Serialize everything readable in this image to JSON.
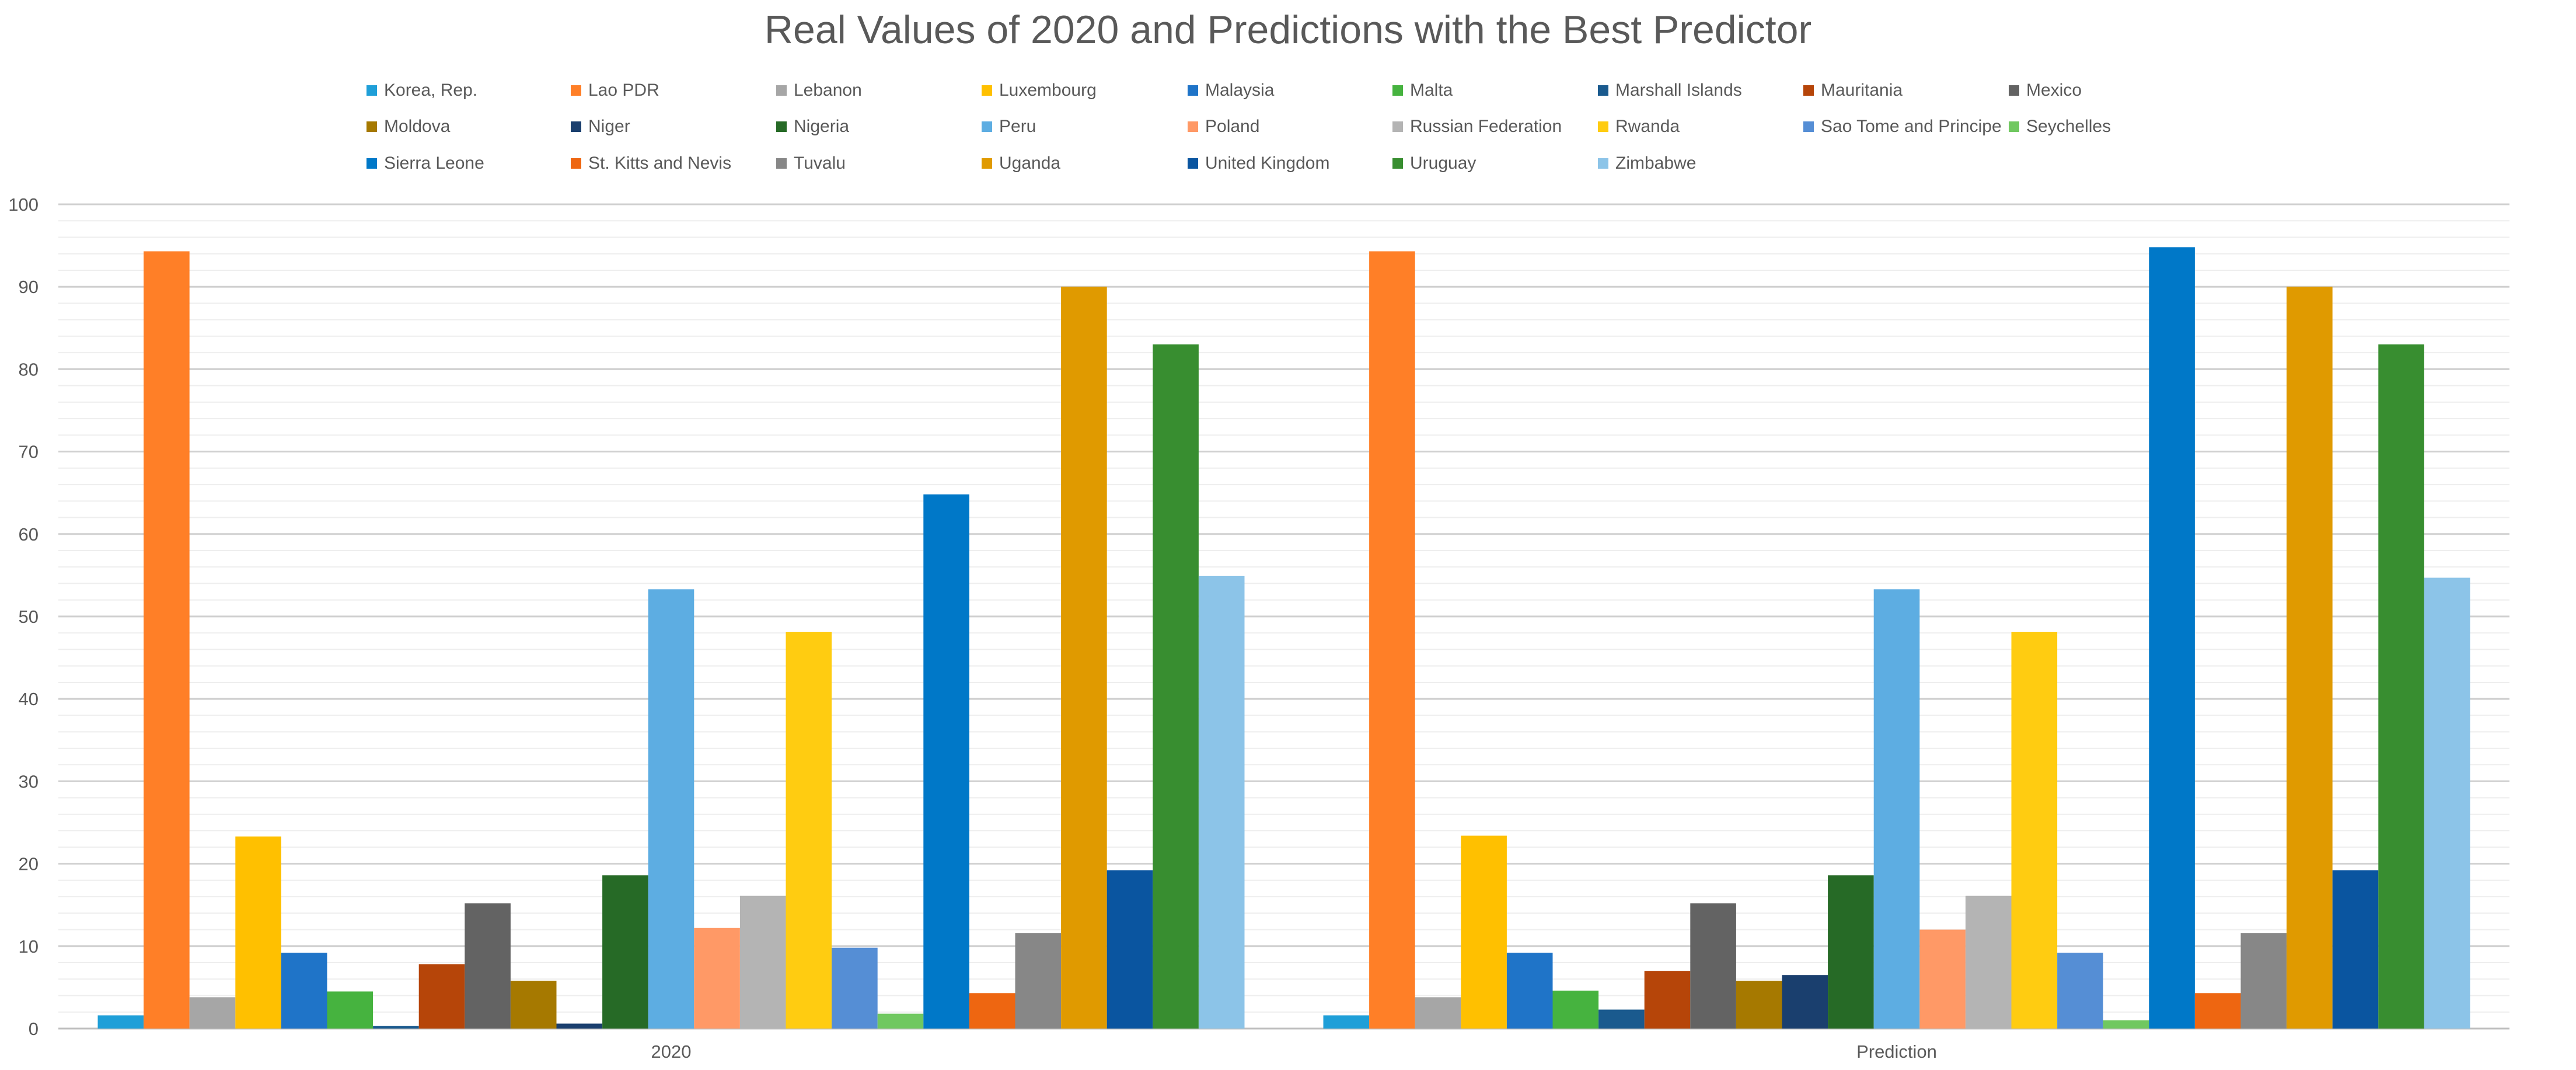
{
  "chart_data": {
    "type": "bar",
    "title": "Real Values of 2020 and Predictions with the Best Predictor",
    "categories": [
      "2020",
      "Prediction"
    ],
    "ylim": [
      0,
      100
    ],
    "y_ticks": [
      "0",
      "10",
      "20",
      "30",
      "40",
      "50",
      "60",
      "70",
      "80",
      "90",
      "100"
    ],
    "grid": true,
    "legend_position": "top",
    "series": [
      {
        "name": "Korea, Rep.",
        "color": "#1F9FD8",
        "values": [
          1.6,
          1.6
        ]
      },
      {
        "name": "Lao PDR",
        "color": "#FF7F27",
        "values": [
          94.3,
          94.3
        ]
      },
      {
        "name": "Lebanon",
        "color": "#A6A6A6",
        "values": [
          3.8,
          3.8
        ]
      },
      {
        "name": "Luxembourg",
        "color": "#FFC000",
        "values": [
          23.3,
          23.4
        ]
      },
      {
        "name": "Malaysia",
        "color": "#1F74C8",
        "values": [
          9.2,
          9.2
        ]
      },
      {
        "name": "Malta",
        "color": "#46B33F",
        "values": [
          4.5,
          4.6
        ]
      },
      {
        "name": "Marshall Islands",
        "color": "#1A5A8E",
        "values": [
          0.3,
          2.3
        ]
      },
      {
        "name": "Mauritania",
        "color": "#B64509",
        "values": [
          7.8,
          7.0
        ]
      },
      {
        "name": "Mexico",
        "color": "#636363",
        "values": [
          15.2,
          15.2
        ]
      },
      {
        "name": "Moldova",
        "color": "#A67900",
        "values": [
          5.8,
          5.8
        ]
      },
      {
        "name": "Niger",
        "color": "#1A3F6E",
        "values": [
          0.6,
          6.5
        ]
      },
      {
        "name": "Nigeria",
        "color": "#266A26",
        "values": [
          18.6,
          18.6
        ]
      },
      {
        "name": "Peru",
        "color": "#5DADE2",
        "values": [
          53.3,
          53.3
        ]
      },
      {
        "name": "Poland",
        "color": "#FF9966",
        "values": [
          12.2,
          12.0
        ]
      },
      {
        "name": "Russian Federation",
        "color": "#B4B4B4",
        "values": [
          16.1,
          16.1
        ]
      },
      {
        "name": "Rwanda",
        "color": "#FFCC11",
        "values": [
          48.1,
          48.1
        ]
      },
      {
        "name": "Sao Tome and Principe",
        "color": "#558ED5",
        "values": [
          9.8,
          9.2
        ]
      },
      {
        "name": "Seychelles",
        "color": "#70C860",
        "values": [
          1.8,
          1.0
        ]
      },
      {
        "name": "Sierra Leone",
        "color": "#0078C8",
        "values": [
          64.8,
          94.8
        ]
      },
      {
        "name": "St. Kitts and Nevis",
        "color": "#EE6611",
        "values": [
          4.3,
          4.3
        ]
      },
      {
        "name": "Tuvalu",
        "color": "#878787",
        "values": [
          11.6,
          11.6
        ]
      },
      {
        "name": "Uganda",
        "color": "#E09A00",
        "values": [
          90.0,
          90.0
        ]
      },
      {
        "name": "United Kingdom",
        "color": "#0A55A0",
        "values": [
          19.2,
          19.2
        ]
      },
      {
        "name": "Uruguay",
        "color": "#388E30",
        "values": [
          83.0,
          83.0
        ]
      },
      {
        "name": "Zimbabwe",
        "color": "#8CC4E8",
        "values": [
          54.9,
          54.7
        ]
      }
    ]
  }
}
